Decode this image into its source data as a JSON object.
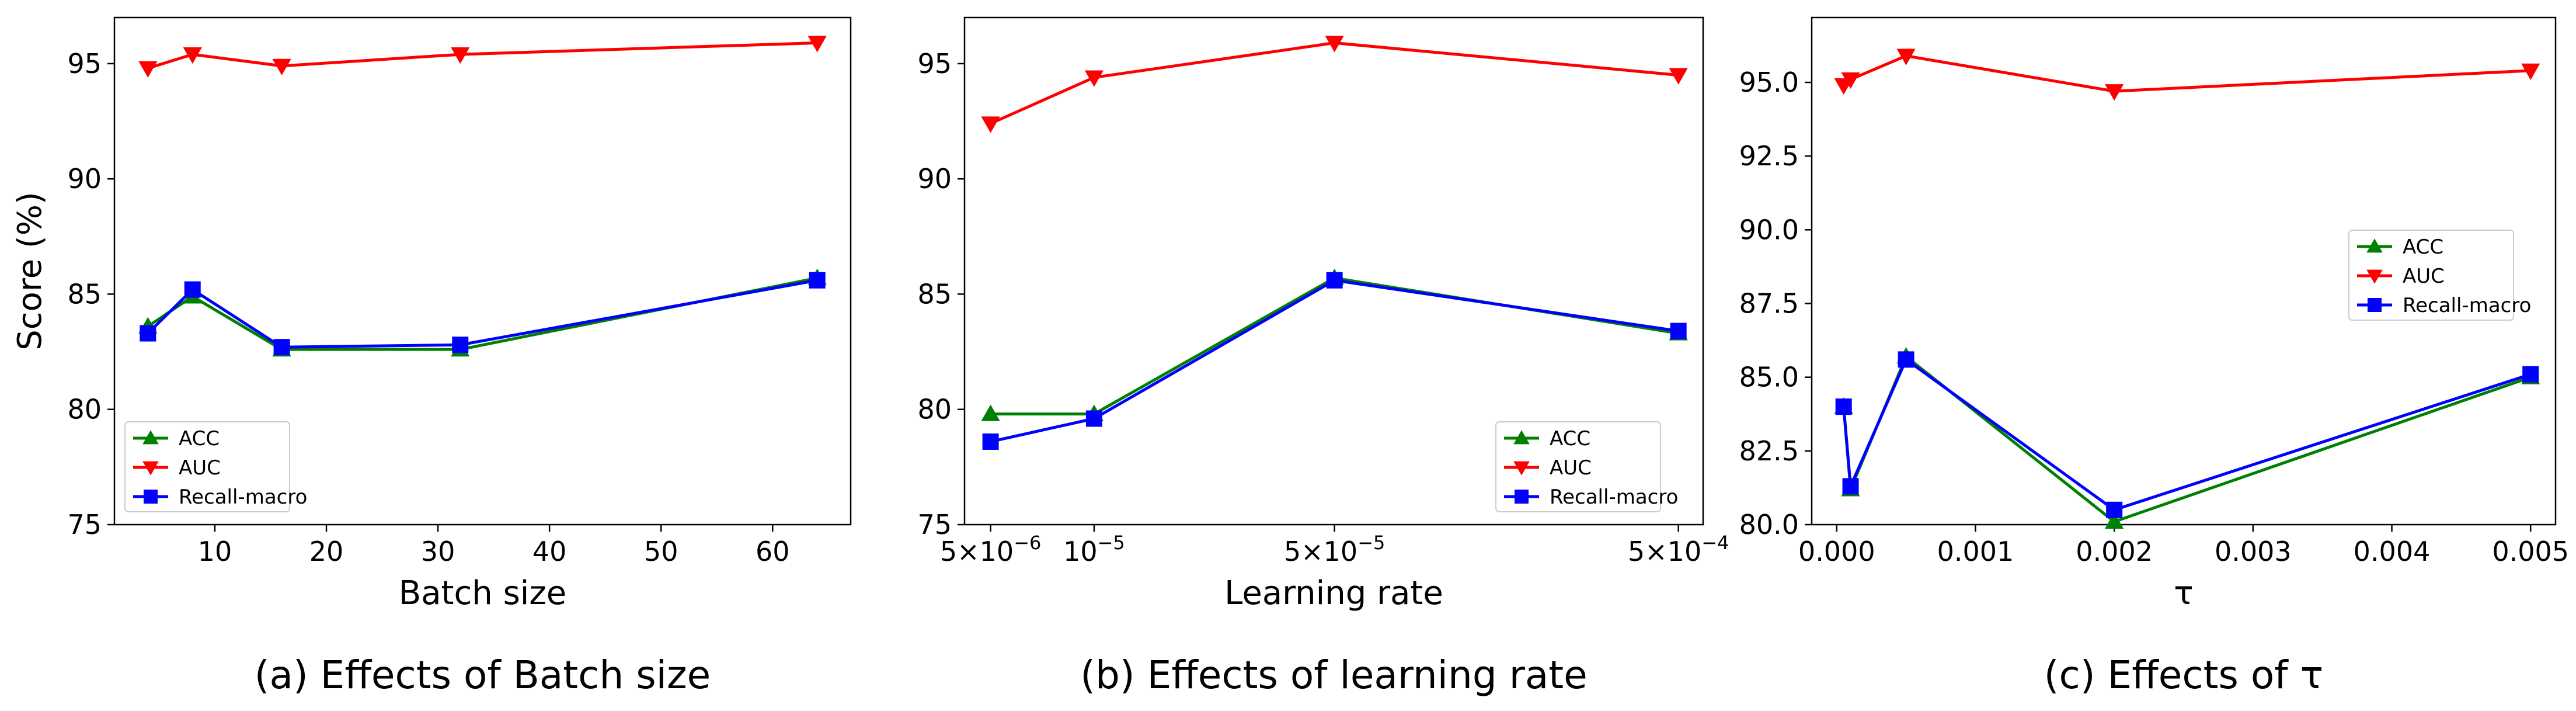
{
  "figure": {
    "ylabel": "Score (%)"
  },
  "chart_data": [
    {
      "type": "line",
      "title": "(a) Effects of Batch size",
      "xlabel": "Batch size",
      "ylabel": "Score (%)",
      "xscale": "linear",
      "xlim": [
        1,
        67
      ],
      "ylim": [
        75,
        97
      ],
      "xticks": [
        10,
        20,
        30,
        40,
        50,
        60
      ],
      "xtick_labels": [
        "10",
        "20",
        "30",
        "40",
        "50",
        "60"
      ],
      "yticks": [
        75,
        80,
        85,
        90,
        95
      ],
      "ytick_labels": [
        "75",
        "80",
        "85",
        "90",
        "95"
      ],
      "x": [
        4,
        8,
        16,
        32,
        64
      ],
      "legend_position": "lower-left",
      "series": [
        {
          "name": "ACC",
          "color": "#008000",
          "marker": "triangle-up",
          "values": [
            83.6,
            84.9,
            82.6,
            82.6,
            85.7
          ]
        },
        {
          "name": "AUC",
          "color": "#ff0000",
          "marker": "triangle-down",
          "values": [
            94.8,
            95.4,
            94.9,
            95.4,
            95.9
          ]
        },
        {
          "name": "Recall-macro",
          "color": "#0000ff",
          "marker": "square",
          "values": [
            83.3,
            85.2,
            82.7,
            82.8,
            85.6
          ]
        }
      ]
    },
    {
      "type": "line",
      "title": "(b) Effects of learning rate",
      "xlabel": "Learning rate",
      "xscale": "log",
      "xlim": [
        4.2e-06,
        0.00059
      ],
      "ylim": [
        75,
        97
      ],
      "xticks": [
        5e-06,
        1e-05,
        5e-05,
        0.0005
      ],
      "xtick_labels": [
        {
          "base": "5×10",
          "exp": "−6"
        },
        {
          "base": "10",
          "exp": "−5"
        },
        {
          "base": "5×10",
          "exp": "−5"
        },
        {
          "base": "5×10",
          "exp": "−4"
        }
      ],
      "yticks": [
        75,
        80,
        85,
        90,
        95
      ],
      "ytick_labels": [
        "75",
        "80",
        "85",
        "90",
        "95"
      ],
      "x": [
        5e-06,
        1e-05,
        5e-05,
        0.0005
      ],
      "x_positions": [
        0,
        1,
        2,
        3
      ],
      "legend_position": "lower-right",
      "series": [
        {
          "name": "ACC",
          "color": "#008000",
          "marker": "triangle-up",
          "values": [
            79.8,
            79.8,
            85.7,
            83.3
          ]
        },
        {
          "name": "AUC",
          "color": "#ff0000",
          "marker": "triangle-down",
          "values": [
            92.4,
            94.4,
            95.9,
            94.5
          ]
        },
        {
          "name": "Recall-macro",
          "color": "#0000ff",
          "marker": "square",
          "values": [
            78.6,
            79.6,
            85.6,
            83.4
          ]
        }
      ]
    },
    {
      "type": "line",
      "title": "(c) Effects of τ",
      "xlabel": "τ",
      "xscale": "linear",
      "xlim": [
        -0.00018,
        0.00518
      ],
      "ylim": [
        80.0,
        97.2
      ],
      "xticks": [
        0.0,
        0.001,
        0.002,
        0.003,
        0.004,
        0.005
      ],
      "xtick_labels": [
        "0.000",
        "0.001",
        "0.002",
        "0.003",
        "0.004",
        "0.005"
      ],
      "yticks": [
        80.0,
        82.5,
        85.0,
        87.5,
        90.0,
        92.5,
        95.0
      ],
      "ytick_labels": [
        "80.0",
        "82.5",
        "85.0",
        "87.5",
        "90.0",
        "92.5",
        "95.0"
      ],
      "x": [
        5e-05,
        0.0001,
        0.0005,
        0.002,
        0.005
      ],
      "legend_position": "center-right",
      "series": [
        {
          "name": "ACC",
          "color": "#008000",
          "marker": "triangle-up",
          "values": [
            84.0,
            81.2,
            85.7,
            80.1,
            85.0
          ]
        },
        {
          "name": "AUC",
          "color": "#ff0000",
          "marker": "triangle-down",
          "values": [
            94.9,
            95.1,
            95.9,
            94.7,
            95.4
          ]
        },
        {
          "name": "Recall-macro",
          "color": "#0000ff",
          "marker": "square",
          "values": [
            84.0,
            81.3,
            85.6,
            80.5,
            85.1
          ]
        }
      ]
    }
  ]
}
